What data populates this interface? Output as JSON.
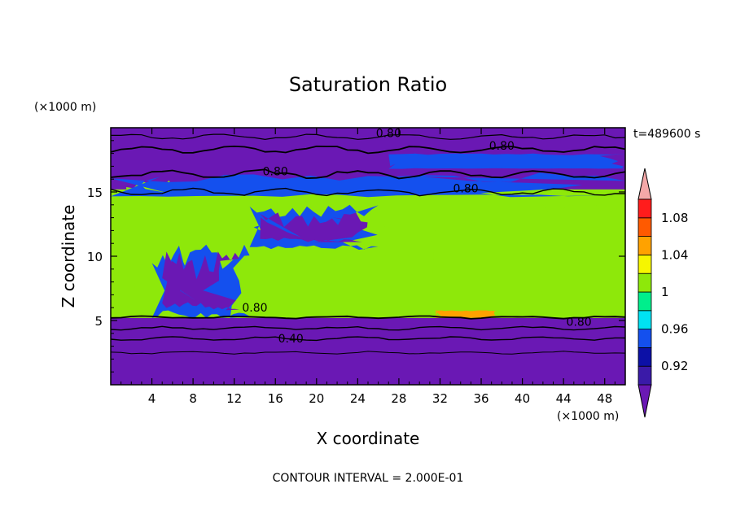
{
  "chart_data": {
    "type": "heatmap",
    "title": "Saturation Ratio",
    "xlabel": "X coordinate",
    "ylabel": "Z coordinate",
    "x_unit": "(×1000 m)",
    "y_unit": "(×1000 m)",
    "time_label": "t=489600 s",
    "footer": "CONTOUR INTERVAL = 2.000E-01",
    "xlim": [
      0,
      50
    ],
    "ylim": [
      0,
      20
    ],
    "x_ticks": [
      4,
      8,
      12,
      16,
      20,
      24,
      28,
      32,
      36,
      40,
      44,
      48
    ],
    "y_ticks": [
      5,
      10,
      15
    ],
    "colorbar": {
      "labels": [
        "0.92",
        "0.96",
        "1",
        "1.04",
        "1.08"
      ],
      "label_values": [
        0.92,
        0.96,
        1.0,
        1.04,
        1.08
      ],
      "bins": [
        {
          "min": 0.9,
          "max": 0.92,
          "color": "#3a1aa8"
        },
        {
          "min": 0.92,
          "max": 0.94,
          "color": "#0c10a6"
        },
        {
          "min": 0.94,
          "max": 0.96,
          "color": "#1450ee"
        },
        {
          "min": 0.96,
          "max": 0.98,
          "color": "#00e2f2"
        },
        {
          "min": 0.98,
          "max": 1.0,
          "color": "#00ee8c"
        },
        {
          "min": 1.0,
          "max": 1.02,
          "color": "#8ee80a"
        },
        {
          "min": 1.02,
          "max": 1.04,
          "color": "#f6f600"
        },
        {
          "min": 1.04,
          "max": 1.06,
          "color": "#ffa200"
        },
        {
          "min": 1.06,
          "max": 1.08,
          "color": "#ff5a00"
        },
        {
          "min": 1.08,
          "max": 1.1,
          "color": "#ff1c1c"
        }
      ],
      "under_color": "#6a18b4",
      "over_color": "#f4a8a8"
    },
    "contour_labels": [
      {
        "text": "0.80",
        "x": 27,
        "z": 19.6
      },
      {
        "text": "0.80",
        "x": 38,
        "z": 18.6
      },
      {
        "text": "0.80",
        "x": 16,
        "z": 16.6
      },
      {
        "text": "0.80",
        "x": 34.5,
        "z": 15.3
      },
      {
        "text": "0.80",
        "x": 14,
        "z": 6.0
      },
      {
        "text": "0.80",
        "x": 45.5,
        "z": 4.9
      },
      {
        "text": "0.40",
        "x": 17.5,
        "z": 3.6
      }
    ],
    "fields": [
      {
        "value": 1.0,
        "shape": "band",
        "x": [
          0,
          50
        ],
        "z": [
          5.2,
          15.2
        ]
      },
      {
        "value": 1.01,
        "region": "cloud",
        "x": [
          1.5,
          14
        ],
        "z": [
          5.5,
          16
        ]
      },
      {
        "value": 1.01,
        "region": "cloud",
        "x": [
          20.5,
          22.5
        ],
        "z": [
          9.5,
          12
        ]
      },
      {
        "value": 1.01,
        "region": "cloud",
        "x": [
          25.5,
          28
        ],
        "z": [
          10,
          12.5
        ]
      },
      {
        "value": 1.01,
        "region": "cloud",
        "x": [
          31,
          37.5
        ],
        "z": [
          5.3,
          13.5
        ]
      },
      {
        "value": 1.01,
        "region": "cloud",
        "x": [
          41.5,
          50
        ],
        "z": [
          5.3,
          14.2
        ]
      },
      {
        "value": 1.05,
        "region": "cloud",
        "x": [
          31.5,
          37.5
        ],
        "z": [
          5.2,
          5.8
        ]
      },
      {
        "value": 0.95,
        "region": "dry-slot",
        "x": [
          4,
          13.5
        ],
        "z": [
          5.2,
          11
        ]
      },
      {
        "value": 0.95,
        "region": "dry-slot",
        "x": [
          13.5,
          26
        ],
        "z": [
          10.5,
          14
        ]
      },
      {
        "value": 0.95,
        "region": "upper-band",
        "x": [
          0,
          50
        ],
        "z": [
          14.6,
          16.5
        ]
      },
      {
        "value": 0.95,
        "region": "upper-patch",
        "x": [
          27,
          50
        ],
        "z": [
          16.8,
          18
        ]
      }
    ]
  }
}
